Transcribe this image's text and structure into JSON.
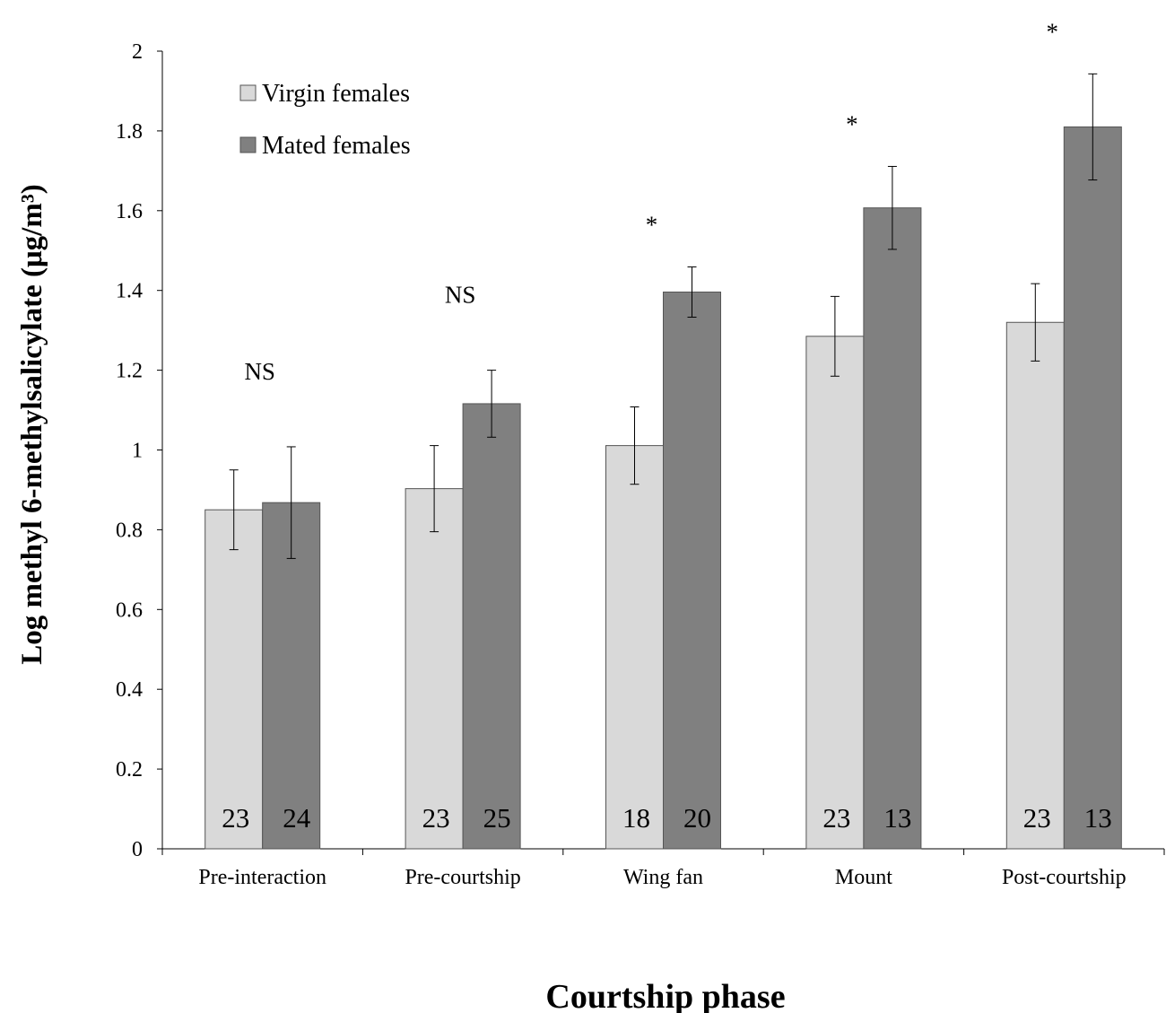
{
  "chart_data": {
    "type": "bar",
    "categories": [
      "Pre-interaction",
      "Pre-courtship",
      "Wing fan",
      "Mount",
      "Post-courtship"
    ],
    "series": [
      {
        "name": "Virgin females",
        "color": "#d9d9d9",
        "values": [
          0.85,
          0.903,
          1.011,
          1.285,
          1.32
        ],
        "errors": [
          0.1,
          0.108,
          0.097,
          0.1,
          0.097
        ],
        "n": [
          "23",
          "23",
          "18",
          "23",
          "23"
        ]
      },
      {
        "name": "Mated females",
        "color": "#808080",
        "values": [
          0.868,
          1.116,
          1.396,
          1.607,
          1.81
        ],
        "errors": [
          0.14,
          0.084,
          0.063,
          0.104,
          0.133
        ],
        "n": [
          "24",
          "25",
          "20",
          "13",
          "13"
        ]
      }
    ],
    "significance": [
      "NS",
      "NS",
      "*",
      "*",
      "*"
    ],
    "ylim": [
      0,
      2
    ],
    "yticks": [
      "0",
      "0.2",
      "0.4",
      "0.6",
      "0.8",
      "1",
      "1.2",
      "1.4",
      "1.6",
      "1.8",
      "2"
    ],
    "ylabel": "Log methyl 6-methylsalicylate (μg/m³)",
    "xlabel": "Courtship phase",
    "legend_position": "top-left",
    "grid": false
  }
}
